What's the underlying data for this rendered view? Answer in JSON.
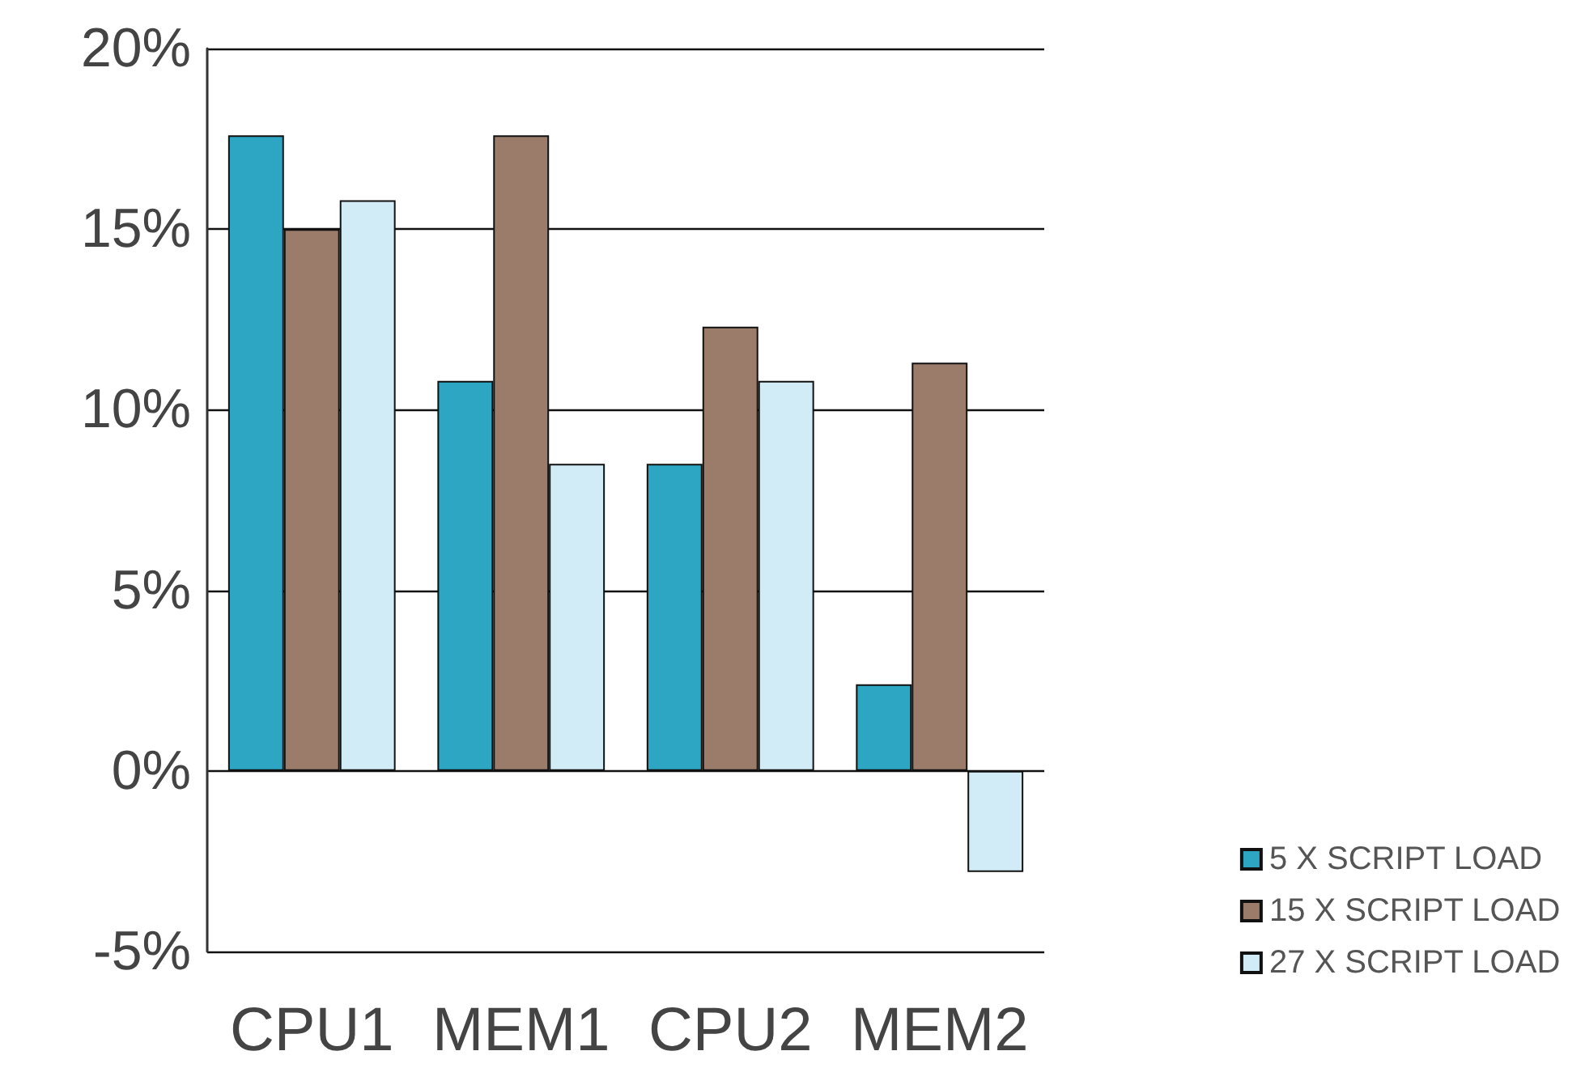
{
  "chart_data": {
    "type": "bar",
    "categories": [
      "CPU1",
      "MEM1",
      "CPU2",
      "MEM2"
    ],
    "series": [
      {
        "name": "5 X SCRIPT LOAD",
        "color": "#2ca6c2",
        "values": [
          17.6,
          10.8,
          8.5,
          2.4
        ]
      },
      {
        "name": "15 X SCRIPT LOAD",
        "color": "#9b7b6a",
        "values": [
          15.0,
          17.6,
          12.3,
          11.3
        ]
      },
      {
        "name": "27 X SCRIPT LOAD",
        "color": "#d2ecf7",
        "values": [
          15.8,
          8.5,
          10.8,
          -2.8
        ]
      }
    ],
    "ylim": [
      -5,
      20
    ],
    "yticks": [
      {
        "value": -5,
        "label": "-5%"
      },
      {
        "value": 0,
        "label": "0%"
      },
      {
        "value": 5,
        "label": "5%"
      },
      {
        "value": 10,
        "label": "10%"
      },
      {
        "value": 15,
        "label": "15%"
      },
      {
        "value": 20,
        "label": "20%"
      }
    ],
    "grid": "y",
    "legend": "bottom right"
  }
}
